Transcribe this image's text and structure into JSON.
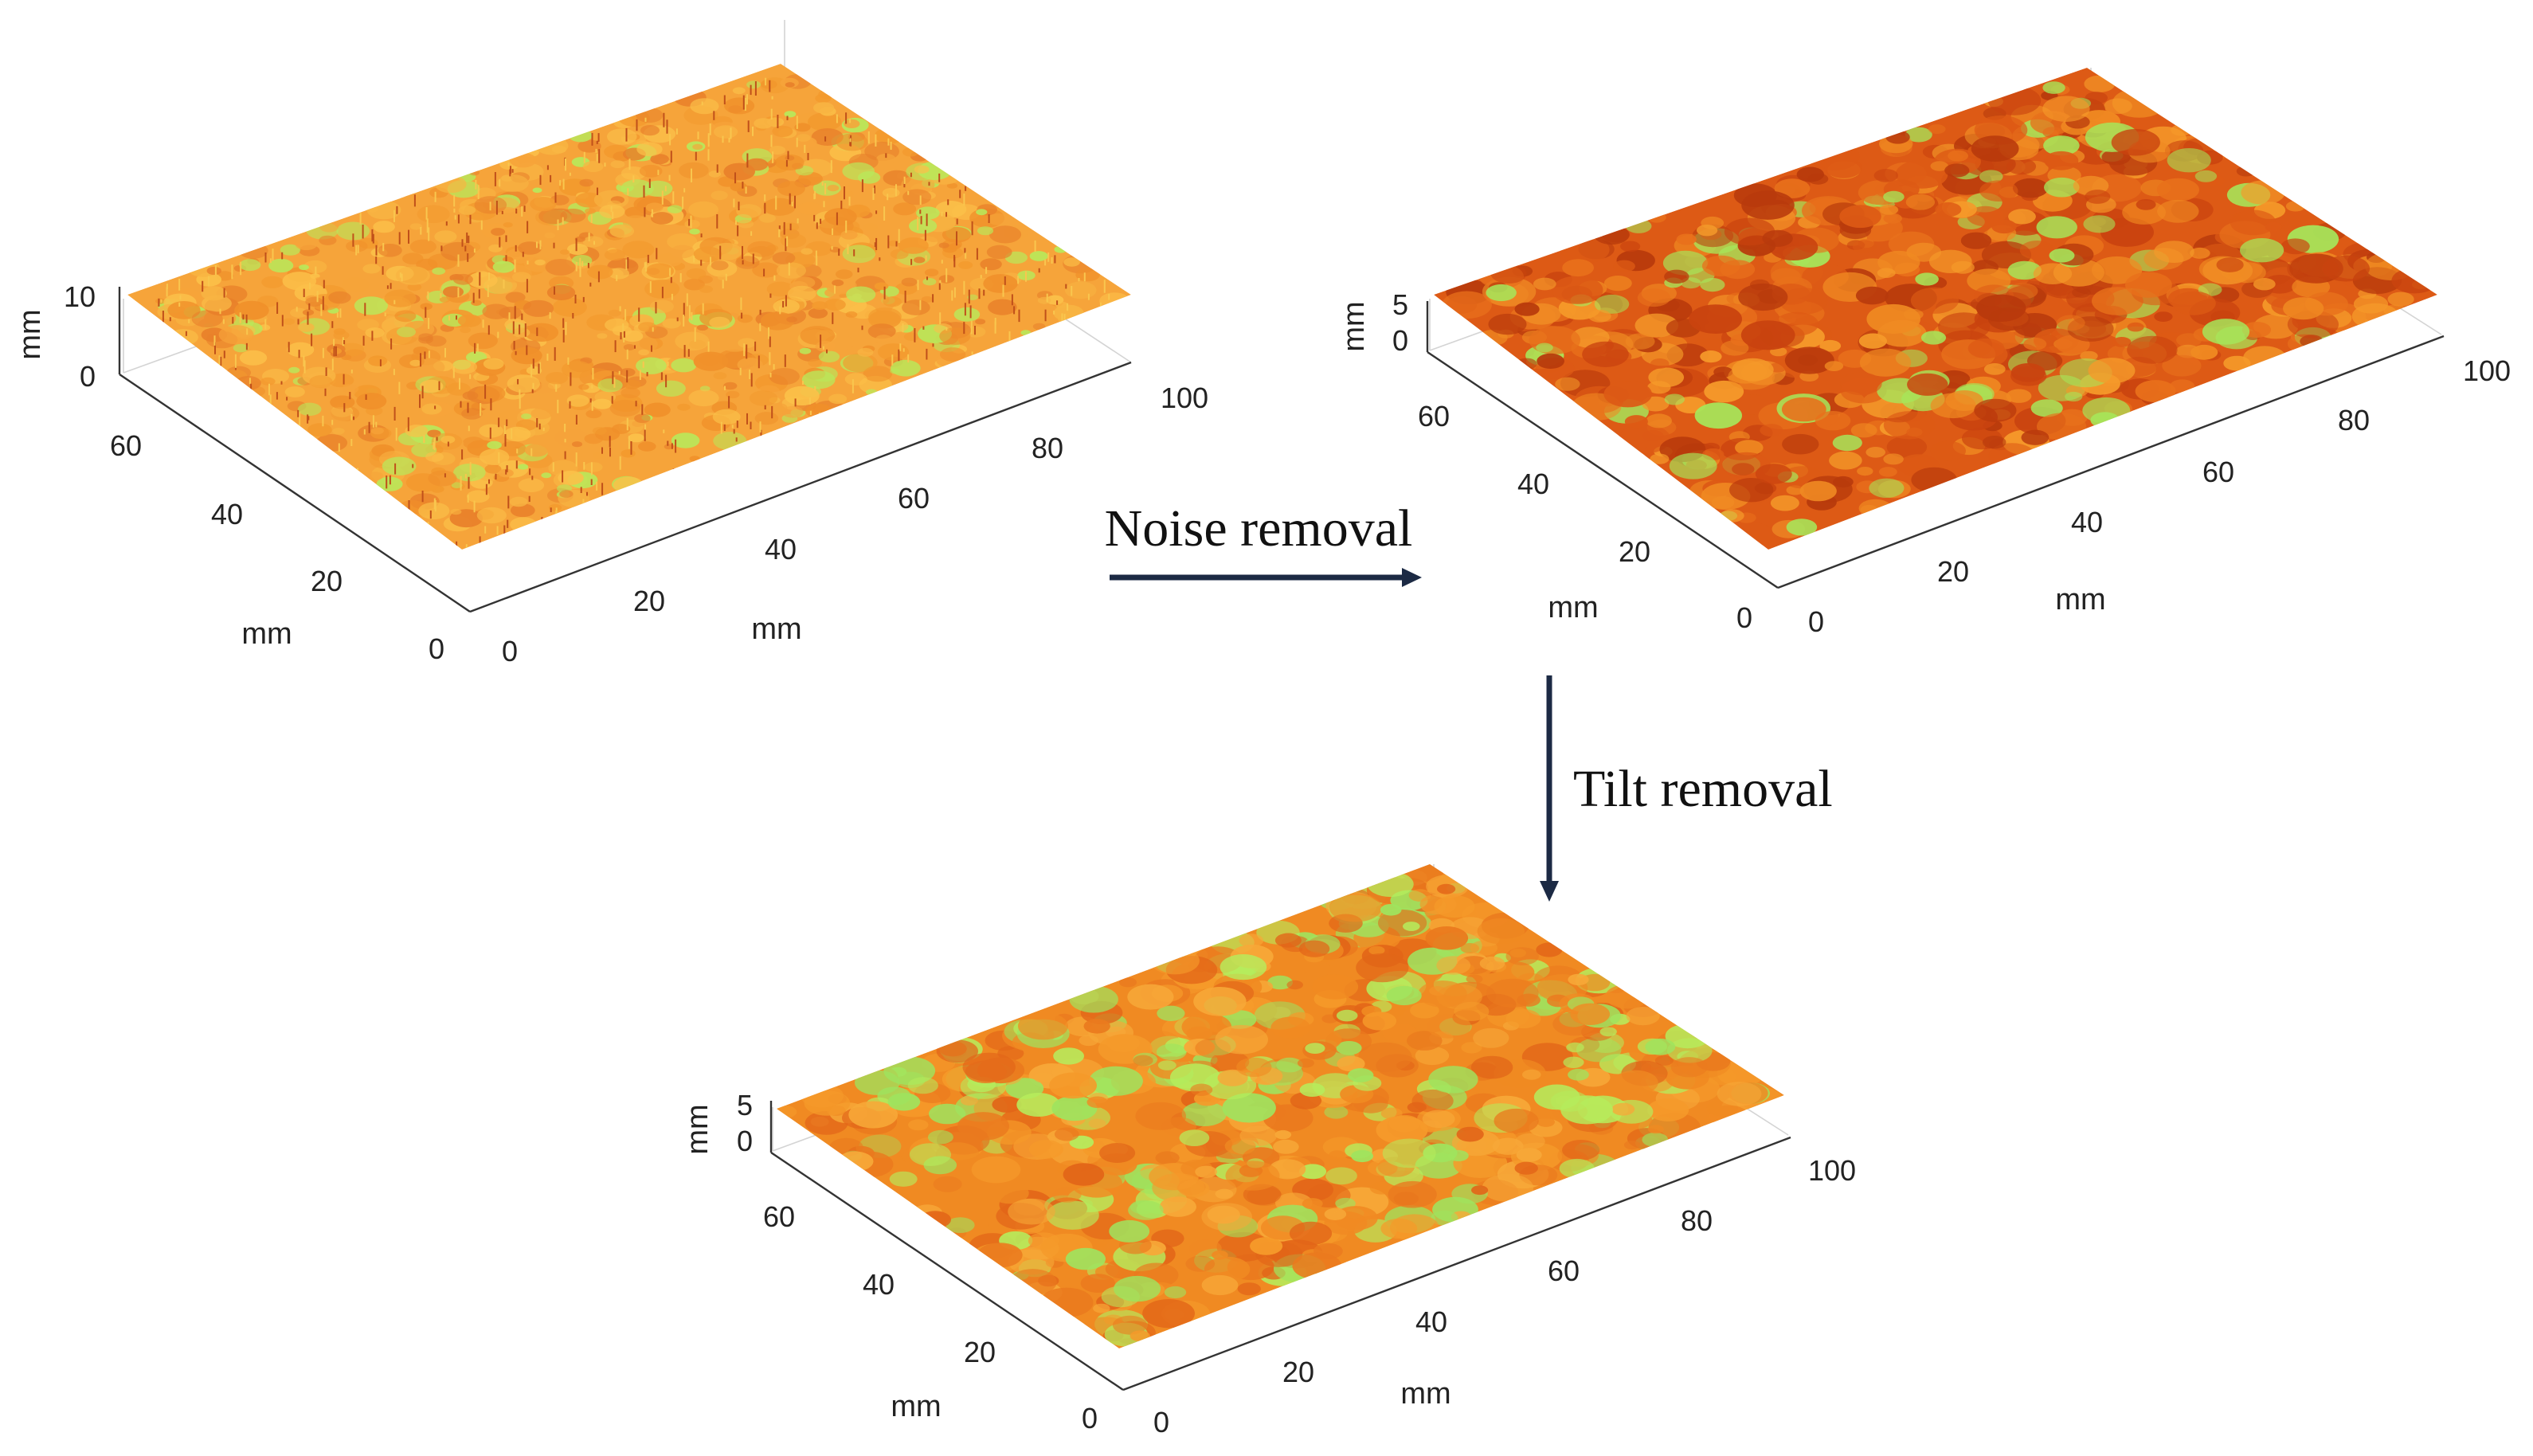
{
  "steps": {
    "noise_removal": "Noise removal",
    "tilt_removal": "Tilt removal"
  },
  "panels": [
    {
      "id": "raw",
      "axis_unit": "mm",
      "z_ticks": [
        "10",
        "0"
      ],
      "y_ticks": [
        "60",
        "40",
        "20",
        "0"
      ],
      "x_ticks": [
        "0",
        "20",
        "40",
        "60",
        "80",
        "100"
      ],
      "surface_palette": [
        "#f39a2e",
        "#f6a43a",
        "#f0902a",
        "#f8b442",
        "#e8802a",
        "#fbc049",
        "#b9e85a"
      ]
    },
    {
      "id": "denoised",
      "axis_unit": "mm",
      "z_ticks": [
        "5",
        "0"
      ],
      "y_ticks": [
        "60",
        "40",
        "20",
        "0"
      ],
      "x_ticks": [
        "0",
        "20",
        "40",
        "60",
        "80",
        "100"
      ],
      "surface_palette": [
        "#c9430f",
        "#b83a0c",
        "#dd5a15",
        "#e8701b",
        "#f08a22",
        "#f59a2a",
        "#a6e65a"
      ]
    },
    {
      "id": "detilted",
      "axis_unit": "mm",
      "z_ticks": [
        "5",
        "0"
      ],
      "y_ticks": [
        "60",
        "40",
        "20",
        "0"
      ],
      "x_ticks": [
        "0",
        "20",
        "40",
        "60",
        "80",
        "100"
      ],
      "surface_palette": [
        "#f08a22",
        "#f59a2a",
        "#ea7a1e",
        "#f7a838",
        "#e26518",
        "#b6ec5c",
        "#9fe35e"
      ]
    }
  ]
}
